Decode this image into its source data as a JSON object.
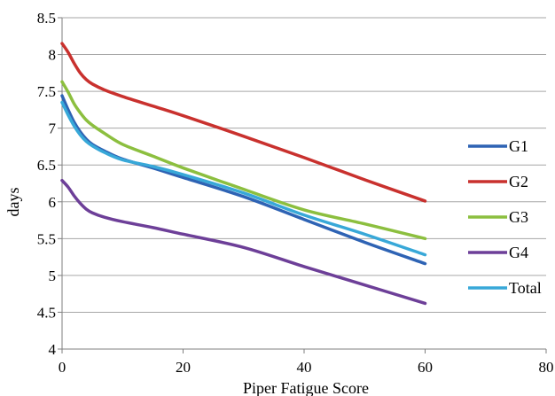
{
  "chart_data": {
    "type": "line",
    "title": "",
    "xlabel": "Piper Fatigue Score",
    "ylabel": "days",
    "xlim": [
      0,
      80
    ],
    "ylim": [
      4,
      8.5
    ],
    "x_ticks": [
      "0",
      "20",
      "40",
      "60",
      "80"
    ],
    "y_ticks": [
      "4",
      "4.5",
      "5",
      "5.5",
      "6",
      "6.5",
      "7",
      "7.5",
      "8",
      "8.5"
    ],
    "grid": "horizontal",
    "legend": "right",
    "series": [
      {
        "name": "G1",
        "color": "#2e63b4",
        "points": [
          [
            0,
            7.44
          ],
          [
            1,
            7.25
          ],
          [
            2,
            7.08
          ],
          [
            3,
            6.95
          ],
          [
            4,
            6.85
          ],
          [
            5,
            6.78
          ],
          [
            7,
            6.69
          ],
          [
            10,
            6.58
          ],
          [
            15,
            6.46
          ],
          [
            20,
            6.33
          ],
          [
            30,
            6.07
          ],
          [
            40,
            5.76
          ],
          [
            50,
            5.45
          ],
          [
            60,
            5.16
          ]
        ]
      },
      {
        "name": "G2",
        "color": "#c9312e",
        "points": [
          [
            0,
            8.15
          ],
          [
            1,
            8.03
          ],
          [
            2,
            7.88
          ],
          [
            3,
            7.75
          ],
          [
            4,
            7.66
          ],
          [
            5,
            7.6
          ],
          [
            7,
            7.52
          ],
          [
            10,
            7.43
          ],
          [
            15,
            7.3
          ],
          [
            20,
            7.17
          ],
          [
            30,
            6.89
          ],
          [
            40,
            6.6
          ],
          [
            50,
            6.3
          ],
          [
            60,
            6.01
          ]
        ]
      },
      {
        "name": "G3",
        "color": "#8cbf3f",
        "points": [
          [
            0,
            7.63
          ],
          [
            1,
            7.49
          ],
          [
            2,
            7.33
          ],
          [
            3,
            7.21
          ],
          [
            4,
            7.11
          ],
          [
            5,
            7.04
          ],
          [
            7,
            6.93
          ],
          [
            10,
            6.78
          ],
          [
            15,
            6.62
          ],
          [
            20,
            6.46
          ],
          [
            30,
            6.17
          ],
          [
            40,
            5.89
          ],
          [
            50,
            5.7
          ],
          [
            60,
            5.5
          ]
        ]
      },
      {
        "name": "G4",
        "color": "#6d3f98",
        "points": [
          [
            0,
            6.29
          ],
          [
            1,
            6.2
          ],
          [
            2,
            6.08
          ],
          [
            3,
            5.98
          ],
          [
            4,
            5.9
          ],
          [
            5,
            5.85
          ],
          [
            7,
            5.79
          ],
          [
            10,
            5.73
          ],
          [
            15,
            5.65
          ],
          [
            20,
            5.56
          ],
          [
            30,
            5.38
          ],
          [
            40,
            5.12
          ],
          [
            50,
            4.87
          ],
          [
            60,
            4.62
          ]
        ]
      },
      {
        "name": "Total",
        "color": "#38a8d8",
        "points": [
          [
            0,
            7.35
          ],
          [
            1,
            7.18
          ],
          [
            2,
            7.03
          ],
          [
            3,
            6.91
          ],
          [
            4,
            6.82
          ],
          [
            5,
            6.76
          ],
          [
            7,
            6.67
          ],
          [
            10,
            6.57
          ],
          [
            15,
            6.48
          ],
          [
            20,
            6.37
          ],
          [
            30,
            6.12
          ],
          [
            40,
            5.82
          ],
          [
            50,
            5.56
          ],
          [
            60,
            5.28
          ]
        ]
      }
    ]
  }
}
